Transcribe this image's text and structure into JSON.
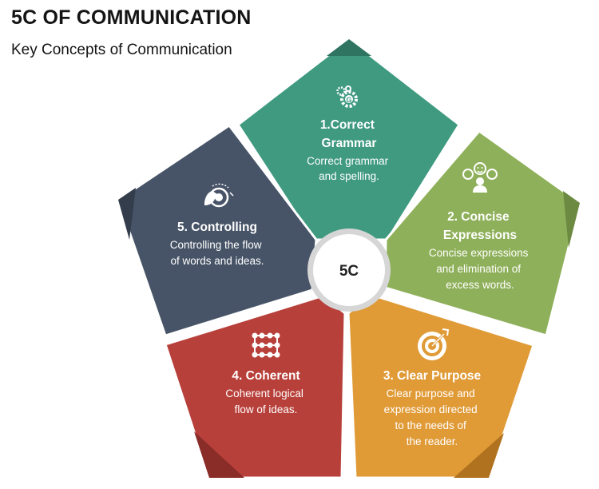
{
  "header": {
    "title": "5C OF COMMUNICATION",
    "subtitle": "Key Concepts of Communication"
  },
  "center": {
    "label": "5C"
  },
  "segments": [
    {
      "id": "correct",
      "title_lines": [
        "1.Correct",
        "Grammar"
      ],
      "desc_lines": [
        "Correct grammar",
        "and spelling."
      ],
      "color": "#3f9a80",
      "dark": "#2f7361",
      "icon": "gears-icon"
    },
    {
      "id": "concise",
      "title_lines": [
        "2. Concise",
        "Expressions"
      ],
      "desc_lines": [
        "Concise expressions",
        "and elimination of",
        "excess words."
      ],
      "color": "#8fb05a",
      "dark": "#6d8a42",
      "icon": "emoji-faces-icon"
    },
    {
      "id": "clear",
      "title_lines": [
        "3. Clear Purpose"
      ],
      "desc_lines": [
        "Clear purpose and",
        "expression directed",
        "to the needs of",
        "the reader."
      ],
      "color": "#e09a36",
      "dark": "#b0721f",
      "icon": "target-icon"
    },
    {
      "id": "coherent",
      "title_lines": [
        "4. Coherent"
      ],
      "desc_lines": [
        "Coherent logical",
        "flow of ideas."
      ],
      "color": "#b8403a",
      "dark": "#8a2c28",
      "icon": "dot-grid-icon"
    },
    {
      "id": "controlling",
      "title_lines": [
        "5. Controlling"
      ],
      "desc_lines": [
        "Controlling the flow",
        "of words and ideas."
      ],
      "color": "#475467",
      "dark": "#333d4c",
      "icon": "hand-dial-icon"
    }
  ]
}
